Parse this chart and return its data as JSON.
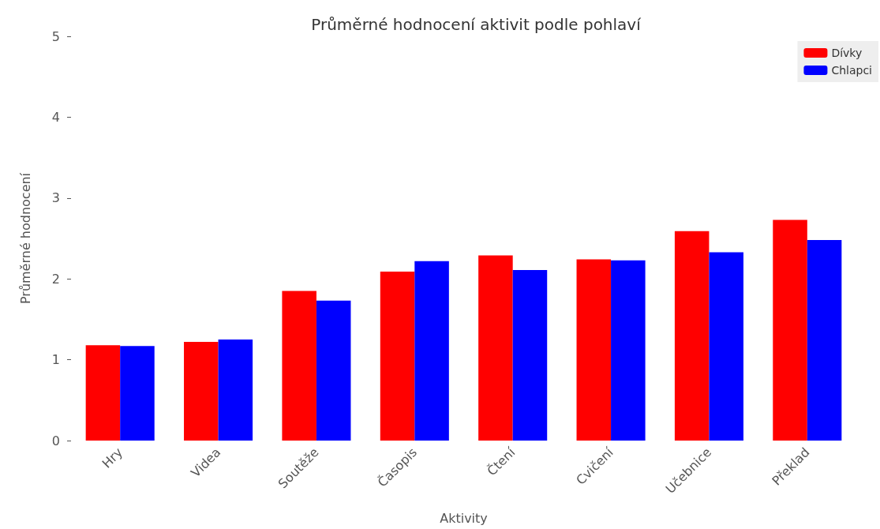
{
  "chart_data": {
    "type": "bar",
    "title": "Průměrné hodnocení aktivit podle pohlaví",
    "xlabel": "Aktivity",
    "ylabel": "Průměrné hodnocení",
    "categories": [
      "Hry",
      "Videa",
      "Soutěže",
      "Časopis",
      "Čtení",
      "Cvičení",
      "Učebnice",
      "Překlad"
    ],
    "series": [
      {
        "name": "Dívky",
        "color": "#ff0000",
        "values": [
          1.18,
          1.22,
          1.85,
          2.09,
          2.29,
          2.24,
          2.59,
          2.73
        ]
      },
      {
        "name": "Chlapci",
        "color": "#0000ff",
        "values": [
          1.17,
          1.25,
          1.73,
          2.22,
          2.11,
          2.23,
          2.33,
          2.48
        ]
      }
    ],
    "ylim": [
      0,
      5
    ],
    "yticks": [
      0,
      1,
      2,
      3,
      4,
      5
    ],
    "grid": false,
    "legend": "top right"
  }
}
